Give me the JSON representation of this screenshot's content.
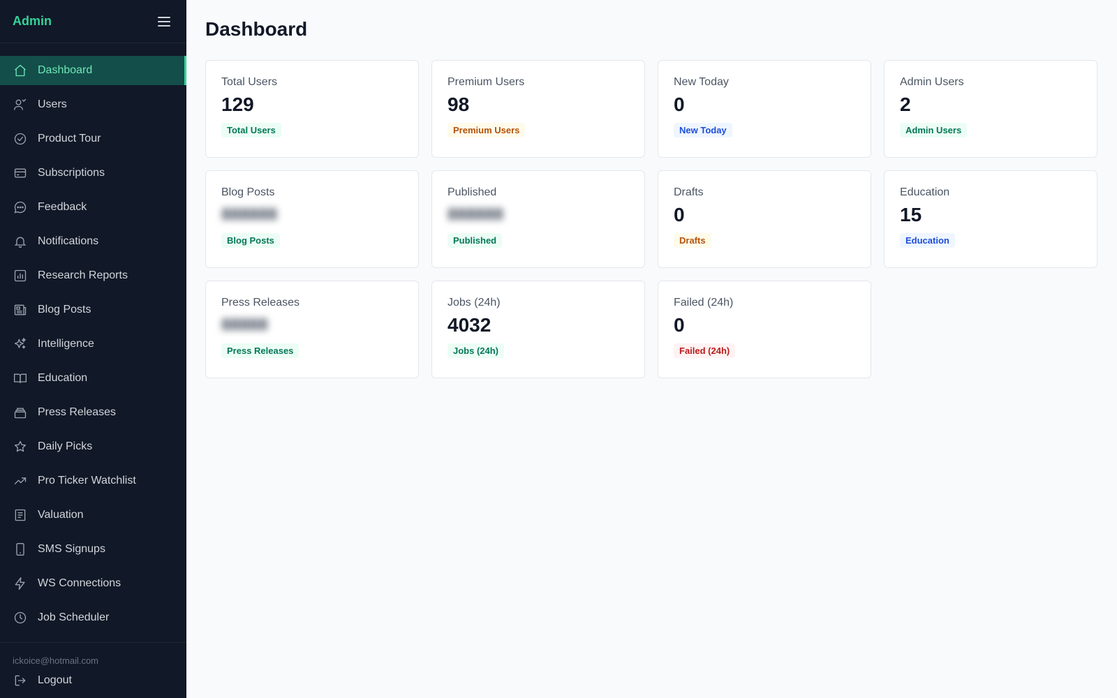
{
  "brand": "Admin",
  "sidebar": {
    "items": [
      {
        "label": "Dashboard",
        "icon": "home-icon",
        "active": true
      },
      {
        "label": "Users",
        "icon": "users-icon"
      },
      {
        "label": "Product Tour",
        "icon": "check-circle-icon"
      },
      {
        "label": "Subscriptions",
        "icon": "credit-card-icon"
      },
      {
        "label": "Feedback",
        "icon": "chat-bubble-icon"
      },
      {
        "label": "Notifications",
        "icon": "bell-icon"
      },
      {
        "label": "Research Reports",
        "icon": "bar-chart-icon"
      },
      {
        "label": "Blog Posts",
        "icon": "newspaper-icon"
      },
      {
        "label": "Intelligence",
        "icon": "sparkles-icon"
      },
      {
        "label": "Education",
        "icon": "book-open-icon"
      },
      {
        "label": "Press Releases",
        "icon": "archive-icon"
      },
      {
        "label": "Daily Picks",
        "icon": "star-icon"
      },
      {
        "label": "Pro Ticker Watchlist",
        "icon": "trending-up-icon"
      },
      {
        "label": "Valuation",
        "icon": "document-icon"
      },
      {
        "label": "SMS Signups",
        "icon": "phone-icon"
      },
      {
        "label": "WS Connections",
        "icon": "lightning-icon"
      },
      {
        "label": "Job Scheduler",
        "icon": "clock-icon"
      }
    ],
    "user_email": "ickoice@hotmail.com",
    "logout_label": "Logout"
  },
  "main": {
    "title": "Dashboard",
    "cards": [
      {
        "label": "Total Users",
        "value": "129",
        "badge": "Total Users",
        "badge_color": "green"
      },
      {
        "label": "Premium Users",
        "value": "98",
        "badge": "Premium Users",
        "badge_color": "amber"
      },
      {
        "label": "New Today",
        "value": "0",
        "badge": "New Today",
        "badge_color": "blue"
      },
      {
        "label": "Admin Users",
        "value": "2",
        "badge": "Admin Users",
        "badge_color": "green"
      },
      {
        "label": "Blog Posts",
        "value": "",
        "blurred": true,
        "badge": "Blog Posts",
        "badge_color": "green"
      },
      {
        "label": "Published",
        "value": "",
        "blurred": true,
        "badge": "Published",
        "badge_color": "green"
      },
      {
        "label": "Drafts",
        "value": "0",
        "badge": "Drafts",
        "badge_color": "amber"
      },
      {
        "label": "Education",
        "value": "15",
        "badge": "Education",
        "badge_color": "blue"
      },
      {
        "label": "Press Releases",
        "value": "",
        "blurred": true,
        "badge": "Press Releases",
        "badge_color": "green"
      },
      {
        "label": "Jobs (24h)",
        "value": "4032",
        "badge": "Jobs (24h)",
        "badge_color": "green"
      },
      {
        "label": "Failed (24h)",
        "value": "0",
        "badge": "Failed (24h)",
        "badge_color": "red"
      }
    ]
  },
  "colors": {
    "sidebar_bg": "#111827",
    "accent": "#34d399",
    "active_bg": "#134e4a",
    "page_bg": "#f8fafc"
  }
}
